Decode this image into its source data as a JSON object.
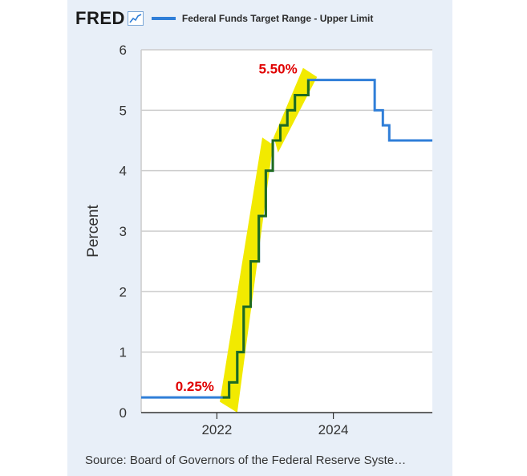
{
  "logo": {
    "text": "FRED",
    "icon": "sparkline-icon"
  },
  "legend": {
    "label": "Federal Funds Target Range - Upper Limit",
    "color": "#2f7ed8"
  },
  "source": "Source: Board of Governors of the Federal Reserve Syste…",
  "colors": {
    "series": "#2f7ed8",
    "highlight_line": "#1e6b1e",
    "highlight_band": "#f2ea00",
    "annotation": "#e00000",
    "plot_bg": "#ffffff",
    "card_bg": "#e8eff8"
  },
  "chart_data": {
    "type": "line",
    "title": "",
    "xlabel": "",
    "ylabel": "Percent",
    "xlim": [
      2020.7,
      2025.7
    ],
    "ylim": [
      0,
      6
    ],
    "yticks": [
      "0",
      "1",
      "2",
      "3",
      "4",
      "5",
      "6"
    ],
    "xticks": [
      {
        "value": 2022,
        "label": "2022"
      },
      {
        "value": 2024,
        "label": "2024"
      }
    ],
    "grid": true,
    "legend_position": "top",
    "series": [
      {
        "name": "Federal Funds Target Range - Upper Limit",
        "step": true,
        "points": [
          [
            2020.7,
            0.25
          ],
          [
            2022.21,
            0.5
          ],
          [
            2022.35,
            1.0
          ],
          [
            2022.46,
            1.75
          ],
          [
            2022.58,
            2.5
          ],
          [
            2022.72,
            3.25
          ],
          [
            2022.84,
            4.0
          ],
          [
            2022.96,
            4.5
          ],
          [
            2023.09,
            4.75
          ],
          [
            2023.21,
            5.0
          ],
          [
            2023.34,
            5.25
          ],
          [
            2023.57,
            5.5
          ],
          [
            2024.71,
            5.0
          ],
          [
            2024.85,
            4.75
          ],
          [
            2024.96,
            4.5
          ],
          [
            2025.7,
            4.5
          ]
        ]
      }
    ],
    "highlight": {
      "from": 2022.05,
      "to": 2023.57
    },
    "annotations": [
      {
        "text": "0.25%",
        "x": 2021.62,
        "y": 0.25
      },
      {
        "text": "5.50%",
        "x": 2023.05,
        "y": 5.5
      }
    ]
  }
}
